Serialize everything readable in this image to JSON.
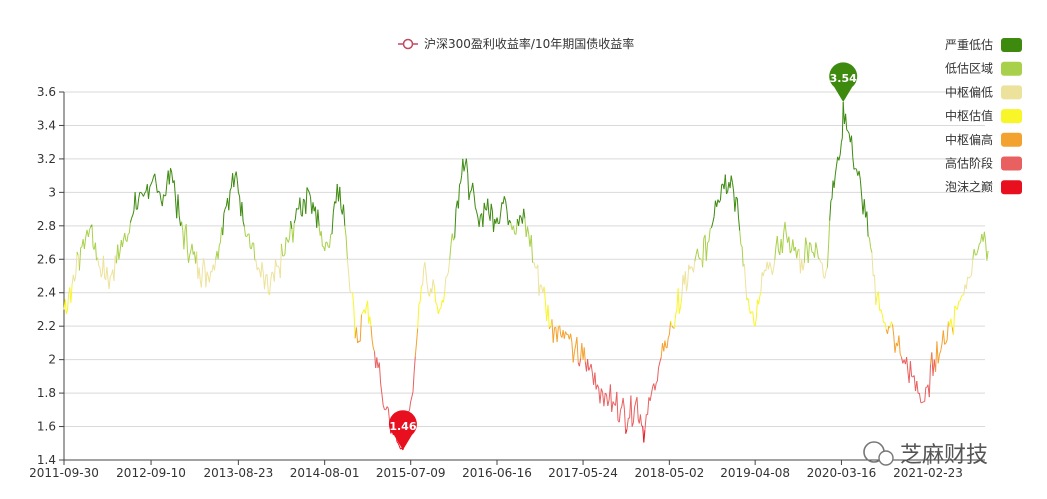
{
  "chart_data": {
    "type": "line",
    "series_name": "沪深300盈利收益率/10年期国债收益率",
    "x_ticks": [
      "2011-09-30",
      "2012-09-10",
      "2013-08-23",
      "2014-08-01",
      "2015-07-09",
      "2016-06-16",
      "2017-05-24",
      "2018-05-02",
      "2019-04-08",
      "2020-03-16",
      "2021-02-23"
    ],
    "y_ticks": [
      "1.4",
      "1.6",
      "1.8",
      "2",
      "2.2",
      "2.4",
      "2.6",
      "2.8",
      "3",
      "3.2",
      "3.4",
      "3.6"
    ],
    "ylim": [
      1.4,
      3.6
    ],
    "grid": true,
    "legend_position": "top-right",
    "zones": [
      {
        "label": "严重低估",
        "color": "#3d8a0f",
        "min": 2.8
      },
      {
        "label": "低估区域",
        "color": "#a8d04a",
        "min": 2.6
      },
      {
        "label": "中枢偏低",
        "color": "#ede29b",
        "min": 2.4
      },
      {
        "label": "中枢估值",
        "color": "#f8f528",
        "min": 2.2
      },
      {
        "label": "中枢偏高",
        "color": "#f3a12f",
        "min": 2.0
      },
      {
        "label": "高估阶段",
        "color": "#e86060",
        "min": 1.6
      },
      {
        "label": "泡沫之巅",
        "color": "#e8101e",
        "min": 0
      }
    ],
    "points": [
      [
        "2011-09-30",
        2.3
      ],
      [
        "2011-11-01",
        2.45
      ],
      [
        "2011-12-15",
        2.72
      ],
      [
        "2012-01-10",
        2.78
      ],
      [
        "2012-02-20",
        2.55
      ],
      [
        "2012-04-01",
        2.5
      ],
      [
        "2012-05-10",
        2.65
      ],
      [
        "2012-06-20",
        2.82
      ],
      [
        "2012-08-01",
        3.0
      ],
      [
        "2012-09-10",
        3.05
      ],
      [
        "2012-10-20",
        2.95
      ],
      [
        "2012-12-01",
        3.12
      ],
      [
        "2013-01-05",
        2.8
      ],
      [
        "2013-02-15",
        2.65
      ],
      [
        "2013-03-20",
        2.55
      ],
      [
        "2013-04-25",
        2.5
      ],
      [
        "2013-05-30",
        2.65
      ],
      [
        "2013-07-01",
        2.9
      ],
      [
        "2013-08-10",
        3.1
      ],
      [
        "2013-08-23",
        3.0
      ],
      [
        "2013-09-30",
        2.75
      ],
      [
        "2013-11-10",
        2.55
      ],
      [
        "2013-12-20",
        2.4
      ],
      [
        "2014-02-01",
        2.55
      ],
      [
        "2014-03-10",
        2.7
      ],
      [
        "2014-04-20",
        2.9
      ],
      [
        "2014-06-01",
        3.0
      ],
      [
        "2014-07-10",
        2.8
      ],
      [
        "2014-08-01",
        2.65
      ],
      [
        "2014-08-25",
        2.75
      ],
      [
        "2014-09-20",
        3.05
      ],
      [
        "2014-10-20",
        2.8
      ],
      [
        "2014-11-15",
        2.4
      ],
      [
        "2014-12-10",
        2.1
      ],
      [
        "2015-01-05",
        2.3
      ],
      [
        "2015-02-01",
        2.2
      ],
      [
        "2015-03-01",
        1.95
      ],
      [
        "2015-04-01",
        1.7
      ],
      [
        "2015-05-01",
        1.55
      ],
      [
        "2015-06-08",
        1.46
      ],
      [
        "2015-07-09",
        1.75
      ],
      [
        "2015-08-01",
        2.1
      ],
      [
        "2015-08-30",
        2.55
      ],
      [
        "2015-10-01",
        2.4
      ],
      [
        "2015-11-01",
        2.3
      ],
      [
        "2015-12-01",
        2.5
      ],
      [
        "2016-01-10",
        2.95
      ],
      [
        "2016-02-01",
        3.2
      ],
      [
        "2016-03-01",
        3.0
      ],
      [
        "2016-04-01",
        2.85
      ],
      [
        "2016-05-01",
        2.9
      ],
      [
        "2016-06-16",
        2.85
      ],
      [
        "2016-07-20",
        2.95
      ],
      [
        "2016-08-20",
        2.8
      ],
      [
        "2016-09-20",
        2.85
      ],
      [
        "2016-10-20",
        2.75
      ],
      [
        "2016-11-15",
        2.55
      ],
      [
        "2016-12-15",
        2.4
      ],
      [
        "2017-01-15",
        2.2
      ],
      [
        "2017-02-15",
        2.2
      ],
      [
        "2017-03-20",
        2.15
      ],
      [
        "2017-04-20",
        2.05
      ],
      [
        "2017-05-24",
        2.0
      ],
      [
        "2017-06-20",
        1.95
      ],
      [
        "2017-07-20",
        1.85
      ],
      [
        "2017-08-20",
        1.8
      ],
      [
        "2017-09-20",
        1.75
      ],
      [
        "2017-10-20",
        1.7
      ],
      [
        "2017-11-20",
        1.65
      ],
      [
        "2017-12-20",
        1.75
      ],
      [
        "2018-01-25",
        1.58
      ],
      [
        "2018-02-20",
        1.8
      ],
      [
        "2018-03-20",
        1.95
      ],
      [
        "2018-04-10",
        2.05
      ],
      [
        "2018-05-02",
        2.15
      ],
      [
        "2018-06-01",
        2.3
      ],
      [
        "2018-06-30",
        2.45
      ],
      [
        "2018-08-01",
        2.55
      ],
      [
        "2018-09-01",
        2.6
      ],
      [
        "2018-10-01",
        2.7
      ],
      [
        "2018-11-01",
        2.95
      ],
      [
        "2018-12-01",
        3.05
      ],
      [
        "2019-01-03",
        3.1
      ],
      [
        "2019-02-01",
        2.85
      ],
      [
        "2019-03-01",
        2.45
      ],
      [
        "2019-04-08",
        2.2
      ],
      [
        "2019-05-10",
        2.5
      ],
      [
        "2019-06-10",
        2.55
      ],
      [
        "2019-07-10",
        2.65
      ],
      [
        "2019-08-10",
        2.75
      ],
      [
        "2019-09-10",
        2.65
      ],
      [
        "2019-10-10",
        2.6
      ],
      [
        "2019-11-10",
        2.7
      ],
      [
        "2019-12-20",
        2.6
      ],
      [
        "2020-01-20",
        2.55
      ],
      [
        "2020-02-03",
        2.95
      ],
      [
        "2020-02-20",
        3.1
      ],
      [
        "2020-03-16",
        3.3
      ],
      [
        "2020-03-23",
        3.54
      ],
      [
        "2020-04-20",
        3.3
      ],
      [
        "2020-05-20",
        3.1
      ],
      [
        "2020-06-20",
        2.85
      ],
      [
        "2020-07-20",
        2.5
      ],
      [
        "2020-08-20",
        2.3
      ],
      [
        "2020-09-20",
        2.2
      ],
      [
        "2020-10-20",
        2.1
      ],
      [
        "2020-11-20",
        2.0
      ],
      [
        "2020-12-20",
        1.9
      ],
      [
        "2021-01-20",
        1.8
      ],
      [
        "2021-02-10",
        1.75
      ],
      [
        "2021-02-23",
        1.85
      ],
      [
        "2021-03-20",
        2.0
      ],
      [
        "2021-04-20",
        2.1
      ],
      [
        "2021-05-20",
        2.2
      ],
      [
        "2021-06-20",
        2.3
      ],
      [
        "2021-07-20",
        2.45
      ],
      [
        "2021-08-20",
        2.6
      ],
      [
        "2021-09-20",
        2.7
      ],
      [
        "2021-10-20",
        2.65
      ]
    ],
    "max_marker": {
      "date": "2020-03-23",
      "value": "3.54",
      "color": "#3d8a0f"
    },
    "min_marker": {
      "date": "2015-06-08",
      "value": "1.46",
      "color": "#e8101e"
    }
  },
  "watermark": {
    "text": "芝麻财技"
  }
}
